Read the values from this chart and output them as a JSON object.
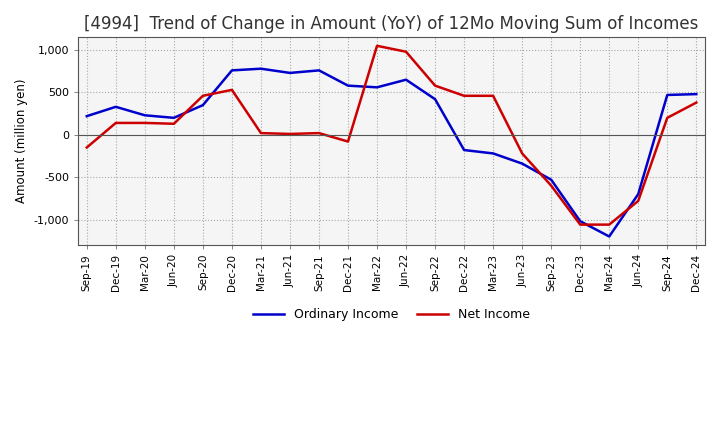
{
  "title": "[4994]  Trend of Change in Amount (YoY) of 12Mo Moving Sum of Incomes",
  "ylabel": "Amount (million yen)",
  "x_labels": [
    "Sep-19",
    "Dec-19",
    "Mar-20",
    "Jun-20",
    "Sep-20",
    "Dec-20",
    "Mar-21",
    "Jun-21",
    "Sep-21",
    "Dec-21",
    "Mar-22",
    "Jun-22",
    "Sep-22",
    "Dec-22",
    "Mar-23",
    "Jun-23",
    "Sep-23",
    "Dec-23",
    "Mar-24",
    "Jun-24",
    "Sep-24",
    "Dec-24"
  ],
  "ordinary_income": [
    220,
    330,
    230,
    200,
    350,
    760,
    780,
    730,
    760,
    580,
    560,
    650,
    420,
    -180,
    -220,
    -340,
    -530,
    -1020,
    -1200,
    -700,
    470,
    480
  ],
  "net_income": [
    -150,
    140,
    140,
    130,
    460,
    530,
    20,
    10,
    20,
    -80,
    1050,
    980,
    580,
    460,
    460,
    -220,
    -600,
    -1060,
    -1060,
    -780,
    200,
    380
  ],
  "ordinary_income_color": "#0000cc",
  "net_income_color": "#cc0000",
  "ylim": [
    -1300,
    1150
  ],
  "yticks": [
    -1000,
    -500,
    0,
    500,
    1000
  ],
  "background_color": "#ffffff",
  "grid_color": "#aaaaaa",
  "title_fontsize": 12,
  "legend_labels": [
    "Ordinary Income",
    "Net Income"
  ]
}
